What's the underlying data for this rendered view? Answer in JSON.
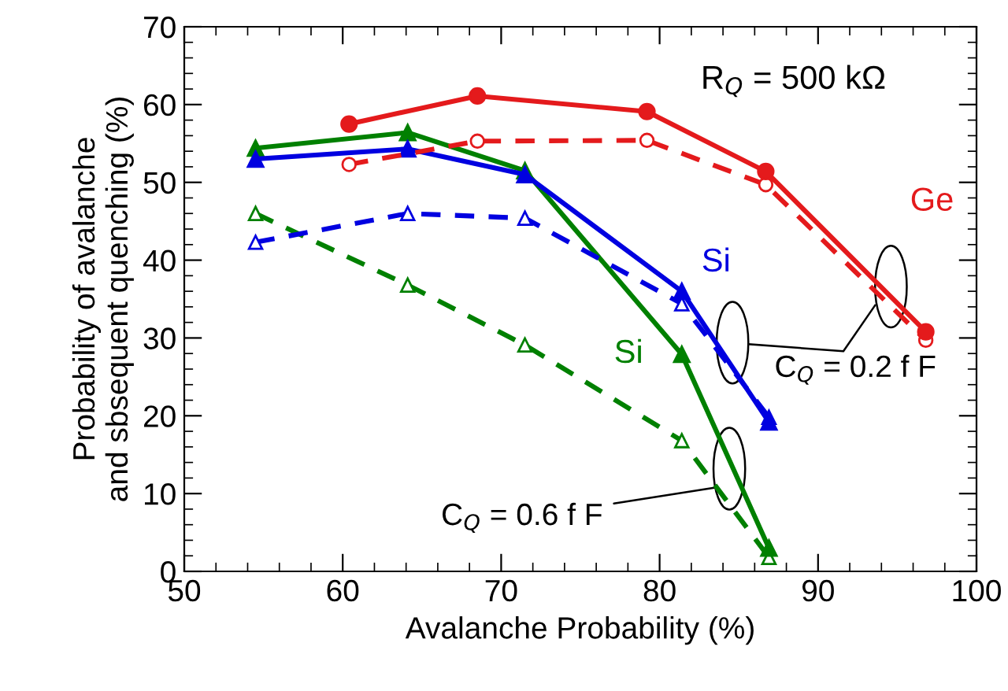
{
  "chart_data": {
    "type": "line",
    "xlabel": "Avalanche Probability (%)",
    "ylabel": "Probability of avalanche\nand sbsequent quenching (%)",
    "xlim": [
      50,
      100
    ],
    "xticks": [
      50,
      60,
      70,
      80,
      90,
      100
    ],
    "ylim": [
      0,
      70
    ],
    "yticks": [
      0,
      10,
      20,
      30,
      40,
      50,
      60,
      70
    ],
    "grid": false,
    "legend": false,
    "series": [
      {
        "name": "Ge",
        "color": "#e41a1c",
        "marker": "circle",
        "line_style": "solid",
        "x": [
          60.4,
          68.5,
          79.2,
          86.7,
          96.8
        ],
        "values": [
          57.5,
          61.1,
          59.1,
          51.4,
          30.8
        ]
      },
      {
        "color": "#e41a1c",
        "marker": "circle",
        "line_style": "dashed",
        "x": [
          60.4,
          68.5,
          79.2,
          86.7,
          96.8
        ],
        "values": [
          52.3,
          55.3,
          55.4,
          49.7,
          29.7
        ]
      },
      {
        "name": "Si",
        "color": "#0000e0",
        "marker": "triangle",
        "line_style": "solid",
        "x": [
          54.5,
          64.1,
          71.5,
          81.4,
          86.9
        ],
        "values": [
          53.0,
          54.3,
          51.0,
          36.0,
          19.2
        ]
      },
      {
        "color": "#0000e0",
        "marker": "triangle",
        "line_style": "dashed",
        "x": [
          54.5,
          64.1,
          71.5,
          81.4,
          86.9
        ],
        "values": [
          42.3,
          46.0,
          45.4,
          34.4,
          19.8
        ]
      },
      {
        "name": "Si",
        "color": "#008000",
        "marker": "triangle",
        "line_style": "solid",
        "x": [
          54.5,
          64.1,
          71.5,
          81.4,
          86.9
        ],
        "values": [
          54.4,
          56.4,
          51.5,
          27.9,
          3.0
        ]
      },
      {
        "color": "#008000",
        "marker": "triangle",
        "line_style": "dashed",
        "x": [
          54.5,
          64.1,
          71.5,
          81.4,
          86.9
        ],
        "values": [
          46.0,
          36.8,
          29.1,
          16.8,
          1.8
        ]
      }
    ],
    "annotations": [
      "R$_{Q}$ = 500 kΩ",
      "C$_{Q}$ = 0.2 f F",
      {
        "text": "C$_{Q}$ = 0.6 f F",
        "x": 83.6,
        "y": 10.8
      }
    ]
  }
}
